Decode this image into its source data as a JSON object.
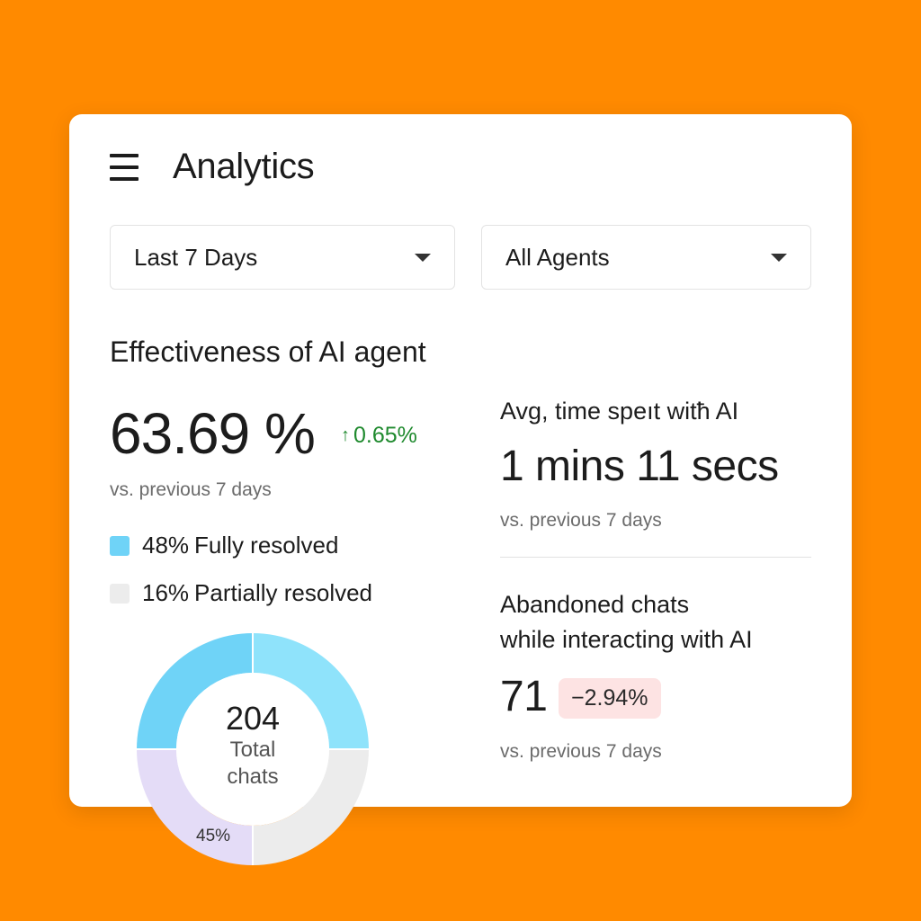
{
  "header": {
    "title": "Analytics",
    "menu_icon": "hamburger-menu-icon"
  },
  "filters": {
    "period": {
      "value": "Last 7 Days",
      "icon": "caret-down-icon"
    },
    "agents": {
      "value": "All Agents",
      "icon": "caret-down-icon"
    }
  },
  "effectiveness": {
    "title": "Effectiveness of AI agent",
    "value": "63.69 %",
    "delta": "0.65%",
    "delta_icon": "arrow-up-icon",
    "comparison": "vs. previous 7 days",
    "legend": [
      {
        "pct": "48%",
        "label": "Fully resolved",
        "color": "#6fd3f7"
      },
      {
        "pct": "16%",
        "label": "Partially resolved",
        "color": "#ececec"
      }
    ]
  },
  "avg_time": {
    "label": "Avg, time speıt witħ AI",
    "value": "1 mins 11 secs",
    "comparison": "vs. previous 7 days"
  },
  "abandoned": {
    "label_line1": "Abandoned chats",
    "label_line2": "while interacting with AI",
    "value": "71",
    "delta": "−2.94%",
    "comparison": "vs. previous 7 days"
  },
  "donut": {
    "total": "204",
    "caption_line1": "Total",
    "caption_line2": "chats",
    "slice_label": "45%",
    "colors": {
      "sky": "#6fd3f7",
      "light_blue": "#8fe3fb",
      "gray": "#ececec",
      "lavender": "#e4dcf7"
    }
  }
}
